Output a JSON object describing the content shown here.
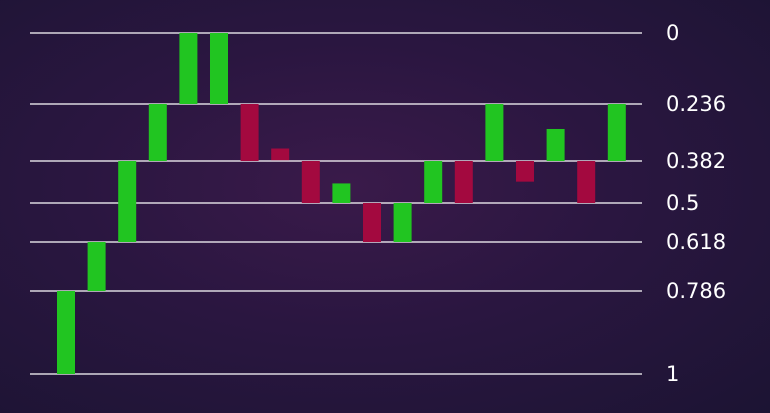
{
  "chart_data": {
    "type": "bar",
    "subtype": "fibonacci-retracement-candles",
    "title": "",
    "xlabel": "",
    "ylabel": "",
    "y_axis": "inverted",
    "ylim": [
      0,
      1
    ],
    "grid": true,
    "levels": [
      {
        "value": 0,
        "label": "0"
      },
      {
        "value": 0.236,
        "label": "0.236"
      },
      {
        "value": 0.382,
        "label": "0.382"
      },
      {
        "value": 0.5,
        "label": "0.5"
      },
      {
        "value": 0.618,
        "label": "0.618"
      },
      {
        "value": 0.786,
        "label": "0.786"
      },
      {
        "value": 1,
        "label": "1"
      }
    ],
    "colors": {
      "up": "#21c521",
      "down": "#a3093f",
      "grid": "#ffffff"
    },
    "candles": [
      {
        "from": 1,
        "to": 0.786,
        "direction": "up"
      },
      {
        "from": 0.786,
        "to": 0.618,
        "direction": "up"
      },
      {
        "from": 0.618,
        "to": 0.382,
        "direction": "up"
      },
      {
        "from": 0.382,
        "to": 0.236,
        "direction": "up"
      },
      {
        "from": 0.236,
        "to": 0,
        "direction": "up"
      },
      {
        "from": 0.236,
        "to": 0,
        "direction": "up"
      },
      {
        "from": 0.236,
        "to": 0.382,
        "direction": "down"
      },
      {
        "from": 0.35,
        "to": 0.38,
        "direction": "down"
      },
      {
        "from": 0.382,
        "to": 0.5,
        "direction": "down"
      },
      {
        "from": 0.5,
        "to": 0.445,
        "direction": "up"
      },
      {
        "from": 0.5,
        "to": 0.618,
        "direction": "down"
      },
      {
        "from": 0.618,
        "to": 0.5,
        "direction": "up"
      },
      {
        "from": 0.5,
        "to": 0.382,
        "direction": "up"
      },
      {
        "from": 0.382,
        "to": 0.5,
        "direction": "down"
      },
      {
        "from": 0.382,
        "to": 0.236,
        "direction": "up"
      },
      {
        "from": 0.382,
        "to": 0.44,
        "direction": "down"
      },
      {
        "from": 0.382,
        "to": 0.3,
        "direction": "up"
      },
      {
        "from": 0.382,
        "to": 0.5,
        "direction": "down"
      },
      {
        "from": 0.382,
        "to": 0.236,
        "direction": "up"
      }
    ]
  }
}
